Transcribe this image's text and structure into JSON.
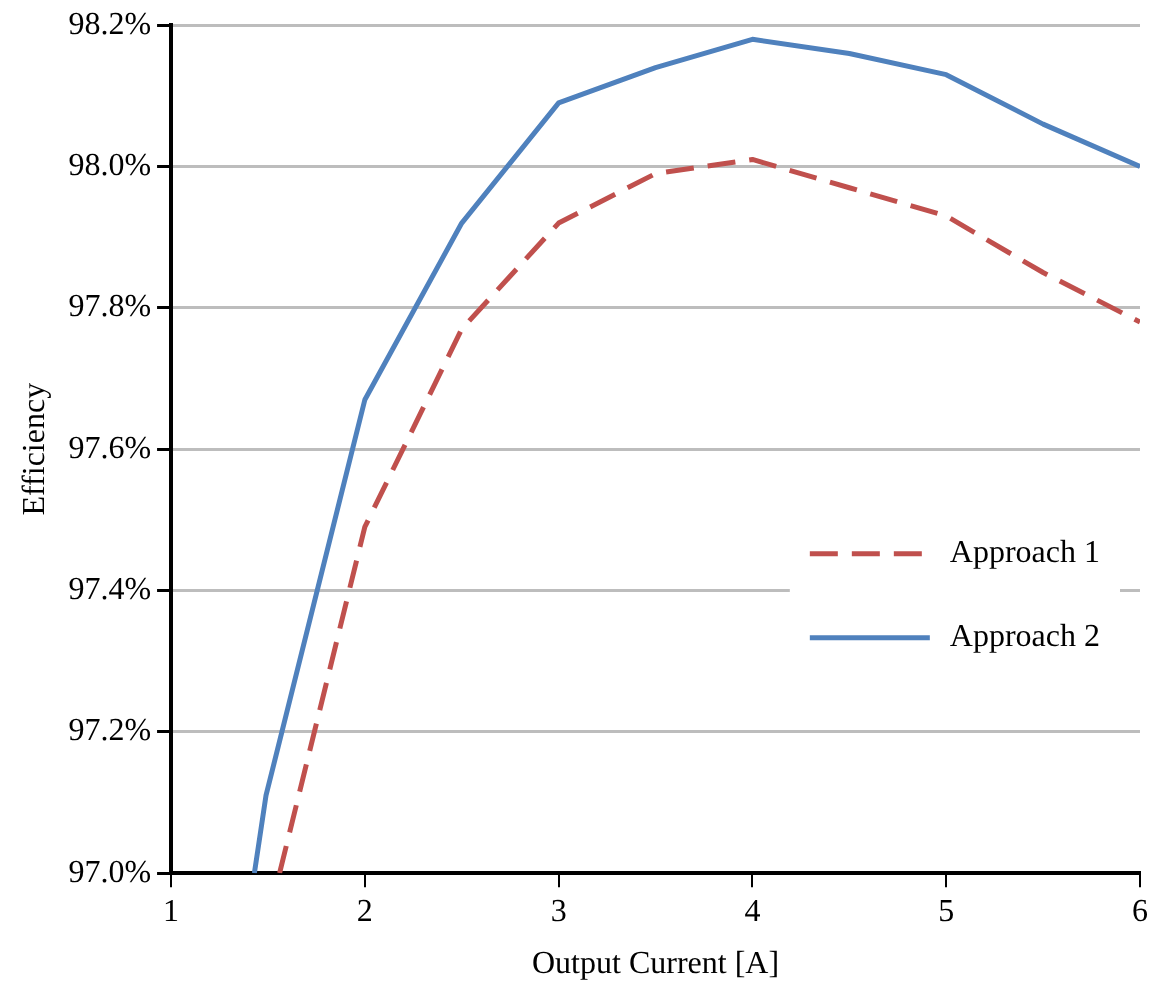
{
  "chart_data": {
    "type": "line",
    "xlabel": "Output Current [A]",
    "ylabel": "Efficiency",
    "xlim": [
      1,
      6
    ],
    "xticks": [
      1,
      2,
      3,
      4,
      5,
      6
    ],
    "ylim": [
      97.0,
      98.2
    ],
    "yticks": [
      {
        "value": 97.0,
        "label": "97.0%"
      },
      {
        "value": 97.2,
        "label": "97.2%"
      },
      {
        "value": 97.4,
        "label": "97.4%"
      },
      {
        "value": 97.6,
        "label": "97.6%"
      },
      {
        "value": 97.8,
        "label": "97.8%"
      },
      {
        "value": 98.0,
        "label": "98.0%"
      },
      {
        "value": 98.2,
        "label": "98.2%"
      }
    ],
    "grid": "y",
    "legend": "right",
    "marker": "none",
    "series": [
      {
        "name": "Approach 1",
        "color": "#c0504d",
        "line_style": "dashed",
        "x": [
          1.56,
          2,
          2.5,
          3,
          3.5,
          4,
          4.5,
          5,
          5.5,
          6
        ],
        "values": [
          97.0,
          97.49,
          97.77,
          97.92,
          97.99,
          98.01,
          97.97,
          97.93,
          97.85,
          97.78
        ]
      },
      {
        "name": "Approach 2",
        "color": "#4f81bd",
        "line_style": "solid",
        "x": [
          1.43,
          1.49,
          2,
          2.5,
          3,
          3.5,
          4,
          4.5,
          5,
          5.5,
          6
        ],
        "values": [
          97.0,
          97.11,
          97.67,
          97.92,
          98.09,
          98.14,
          98.18,
          98.16,
          98.13,
          98.06,
          98.0
        ]
      }
    ]
  }
}
